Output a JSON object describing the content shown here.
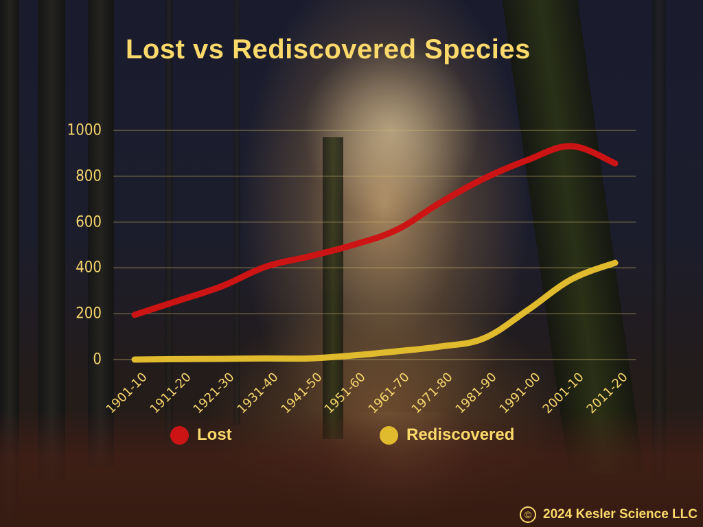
{
  "title": "Lost vs Rediscovered Species",
  "legend": {
    "lost": {
      "label": "Lost",
      "color": "#cc1414"
    },
    "rediscovered": {
      "label": "Rediscovered",
      "color": "#e0bb2e"
    }
  },
  "copyright": {
    "symbol": "©",
    "text": "2024 Kesler Science LLC"
  },
  "chart_data": {
    "type": "line",
    "title": "Lost vs Rediscovered Species",
    "xlabel": "",
    "ylabel": "",
    "categories": [
      "1901-10",
      "1911-20",
      "1921-30",
      "1931-40",
      "1941-50",
      "1951-60",
      "1961-70",
      "1971-80",
      "1981-90",
      "1991-00",
      "2001-10",
      "2011-20"
    ],
    "series": [
      {
        "name": "Lost",
        "color": "#cc1414",
        "values": [
          195,
          257,
          320,
          405,
          450,
          500,
          566,
          685,
          790,
          871,
          931,
          856
        ]
      },
      {
        "name": "Rediscovered",
        "color": "#e0bb2e",
        "values": [
          0,
          2,
          3,
          5,
          5,
          18,
          36,
          57,
          93,
          216,
          350,
          422
        ]
      }
    ],
    "yticks": [
      0,
      200,
      400,
      600,
      800,
      1000
    ],
    "ylim": [
      0,
      1000
    ],
    "grid": true,
    "legend_position": "bottom"
  }
}
